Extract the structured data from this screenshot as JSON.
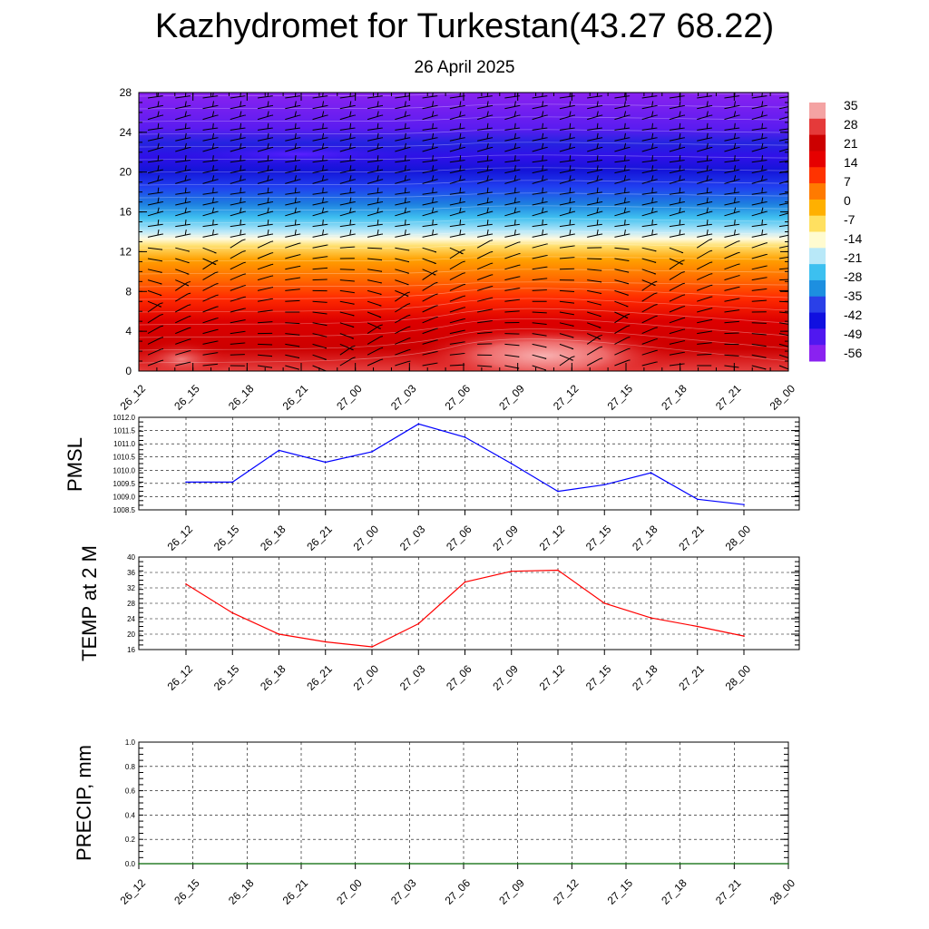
{
  "title": "Kazhydromet for Turkestan(43.27 68.22)",
  "subtitle": "26 April 2025",
  "colors": {
    "pmsl_line": "#0000ff",
    "temp_line": "#ff0000",
    "precip_line": "#006400",
    "colorbar": [
      "#f4a3a3",
      "#e53a3a",
      "#cc0000",
      "#e60000",
      "#ff3300",
      "#ff7a00",
      "#ffb000",
      "#ffe060",
      "#fffbd0",
      "#b8e8f8",
      "#3cc0f0",
      "#1d8fe0",
      "#2a40e8",
      "#1010e0",
      "#5018f0",
      "#8a22f0"
    ]
  },
  "chart_data": [
    {
      "type": "heatmap",
      "title": "",
      "xlabel": "",
      "ylabel": "",
      "x": [
        "26_12",
        "26_15",
        "26_18",
        "26_21",
        "27_00",
        "27_03",
        "27_06",
        "27_09",
        "27_12",
        "27_15",
        "27_18",
        "27_21",
        "28_00"
      ],
      "yticks": [
        0,
        4,
        8,
        12,
        16,
        20,
        24,
        28
      ],
      "ylim": [
        0,
        28
      ],
      "colorbar_labels": [
        35,
        28,
        21,
        14,
        7,
        0,
        -7,
        -14,
        -21,
        -28,
        -35,
        -42,
        -49,
        -56
      ],
      "grid": false,
      "barbs": true
    },
    {
      "type": "line",
      "ylabel": "PMSL",
      "x": [
        "26_12",
        "26_15",
        "26_18",
        "26_21",
        "27_00",
        "27_03",
        "27_06",
        "27_09",
        "27_12",
        "27_15",
        "27_18",
        "27_21",
        "28_00"
      ],
      "yticks": [
        "1008.5",
        "1009.0",
        "1009.5",
        "1010.0",
        "1010.5",
        "1011.0",
        "1011.5",
        "1012.0"
      ],
      "ylim": [
        1008.5,
        1012.0
      ],
      "grid": true,
      "series": [
        {
          "values": [
            1009.55,
            1009.55,
            1010.75,
            1010.3,
            1010.7,
            1011.75,
            1011.25,
            1010.25,
            1009.2,
            1009.45,
            1009.9,
            1008.9,
            1008.7
          ]
        }
      ]
    },
    {
      "type": "line",
      "ylabel": "TEMP at 2 M",
      "x": [
        "26_12",
        "26_15",
        "26_18",
        "26_21",
        "27_00",
        "27_03",
        "27_06",
        "27_09",
        "27_12",
        "27_15",
        "27_18",
        "27_21",
        "28_00"
      ],
      "yticks": [
        "16",
        "20",
        "24",
        "28",
        "32",
        "36",
        "40"
      ],
      "ylim": [
        16,
        40
      ],
      "grid": true,
      "series": [
        {
          "values": [
            33.0,
            25.5,
            20.0,
            18.0,
            16.7,
            22.7,
            33.5,
            36.3,
            36.6,
            28.0,
            24.2,
            22.0,
            19.5
          ]
        }
      ]
    },
    {
      "type": "line",
      "ylabel": "PRECIP, mm",
      "x": [
        "26_12",
        "26_15",
        "26_18",
        "26_21",
        "27_00",
        "27_03",
        "27_06",
        "27_09",
        "27_12",
        "27_15",
        "27_18",
        "27_21",
        "28_00"
      ],
      "yticks": [
        "0.0",
        "0.2",
        "0.4",
        "0.6",
        "0.8",
        "1.0"
      ],
      "ylim": [
        0,
        1
      ],
      "grid": true,
      "series": [
        {
          "values": [
            0,
            0,
            0,
            0,
            0,
            0,
            0,
            0,
            0,
            0,
            0,
            0,
            0
          ]
        }
      ]
    }
  ]
}
